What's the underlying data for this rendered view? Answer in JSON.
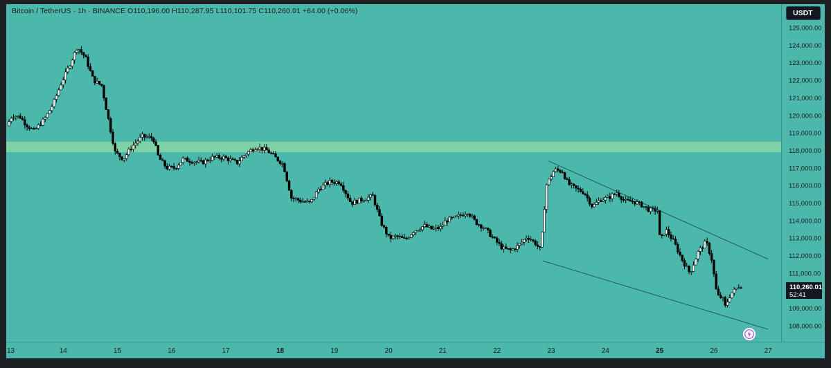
{
  "header": {
    "symbol": "Bitcoin / TetherUS",
    "interval": "1h",
    "exchange": "BINANCE",
    "ohlc_text": "O110,196.00 H110,287.95 L110,101.75 C110,260.01 +64.00 (+0.06%)"
  },
  "header_line": "Bitcoin / TetherUS · 1h · BINANCE  O110,196.00 H110,287.95 L110,101.75 C110,260.01 +64.00 (+0.06%)",
  "currency_button": "USDT",
  "price_badge": {
    "price": "110,260.01",
    "countdown": "52:41"
  },
  "alert_icon": "lightning-bolt-icon",
  "colors": {
    "background": "#4bb8ab",
    "frame": "#1e2124",
    "candle_up_body": "#ffffff",
    "candle_down_body": "#000000",
    "wick": "#000000",
    "resistance_zone": "#7fd2a6",
    "trendline": "#1f3f45",
    "badge": "#131722"
  },
  "chart_data": {
    "type": "candlestick",
    "title": "",
    "xlabel": "",
    "ylabel": "",
    "ylim": [
      107500,
      125300
    ],
    "y_ticks": [
      108000,
      109000,
      110000,
      111000,
      112000,
      113000,
      114000,
      115000,
      116000,
      117000,
      118000,
      119000,
      120000,
      121000,
      122000,
      123000,
      124000,
      125000
    ],
    "y_tick_labels": [
      "108,000.00",
      "109,000.00",
      "110,000.00",
      "111,000.00",
      "112,000.00",
      "113,000.00",
      "114,000.00",
      "115,000.00",
      "116,000.00",
      "117,000.00",
      "118,000.00",
      "119,000.00",
      "120,000.00",
      "121,000.00",
      "122,000.00",
      "123,000.00",
      "124,000.00",
      "125,000.00"
    ],
    "x_range_days": [
      13,
      27
    ],
    "x_ticks": [
      {
        "day": 13,
        "label": "13",
        "bold": false
      },
      {
        "day": 14,
        "label": "14",
        "bold": false
      },
      {
        "day": 15,
        "label": "15",
        "bold": false
      },
      {
        "day": 16,
        "label": "16",
        "bold": false
      },
      {
        "day": 17,
        "label": "17",
        "bold": false
      },
      {
        "day": 18,
        "label": "18",
        "bold": true
      },
      {
        "day": 19,
        "label": "19",
        "bold": false
      },
      {
        "day": 20,
        "label": "20",
        "bold": false
      },
      {
        "day": 21,
        "label": "21",
        "bold": false
      },
      {
        "day": 22,
        "label": "22",
        "bold": false
      },
      {
        "day": 23,
        "label": "23",
        "bold": false
      },
      {
        "day": 24,
        "label": "24",
        "bold": false
      },
      {
        "day": 25,
        "label": "25",
        "bold": true
      },
      {
        "day": 26,
        "label": "26",
        "bold": false
      },
      {
        "day": 27,
        "label": "27",
        "bold": false
      }
    ],
    "price_path": [
      [
        13.0,
        119400
      ],
      [
        13.1,
        120000
      ],
      [
        13.25,
        119900
      ],
      [
        13.35,
        119500
      ],
      [
        13.5,
        119100
      ],
      [
        13.7,
        119800
      ],
      [
        13.85,
        120600
      ],
      [
        14.0,
        121800
      ],
      [
        14.15,
        122800
      ],
      [
        14.3,
        123900
      ],
      [
        14.45,
        123300
      ],
      [
        14.6,
        122000
      ],
      [
        14.75,
        121700
      ],
      [
        14.9,
        119400
      ],
      [
        15.0,
        117900
      ],
      [
        15.15,
        117500
      ],
      [
        15.3,
        118200
      ],
      [
        15.5,
        118800
      ],
      [
        15.7,
        118700
      ],
      [
        15.8,
        117600
      ],
      [
        15.95,
        117000
      ],
      [
        16.1,
        117000
      ],
      [
        16.25,
        117500
      ],
      [
        16.4,
        117400
      ],
      [
        16.6,
        117300
      ],
      [
        16.8,
        117600
      ],
      [
        17.0,
        117600
      ],
      [
        17.25,
        117300
      ],
      [
        17.4,
        117800
      ],
      [
        17.6,
        118200
      ],
      [
        17.8,
        118000
      ],
      [
        17.95,
        117600
      ],
      [
        18.1,
        117200
      ],
      [
        18.25,
        115300
      ],
      [
        18.45,
        115100
      ],
      [
        18.6,
        115000
      ],
      [
        18.75,
        115800
      ],
      [
        18.95,
        116200
      ],
      [
        19.15,
        116200
      ],
      [
        19.35,
        115000
      ],
      [
        19.55,
        115200
      ],
      [
        19.75,
        115400
      ],
      [
        19.9,
        113900
      ],
      [
        20.05,
        113000
      ],
      [
        20.2,
        113100
      ],
      [
        20.35,
        112900
      ],
      [
        20.5,
        113400
      ],
      [
        20.7,
        113700
      ],
      [
        20.85,
        113500
      ],
      [
        21.0,
        113600
      ],
      [
        21.1,
        114000
      ],
      [
        21.3,
        114200
      ],
      [
        21.5,
        114500
      ],
      [
        21.65,
        113900
      ],
      [
        21.8,
        113600
      ],
      [
        22.0,
        112900
      ],
      [
        22.15,
        112400
      ],
      [
        22.3,
        112300
      ],
      [
        22.45,
        112600
      ],
      [
        22.6,
        113100
      ],
      [
        22.75,
        112700
      ],
      [
        22.85,
        112300
      ],
      [
        22.95,
        116000
      ],
      [
        23.1,
        116900
      ],
      [
        23.25,
        116800
      ],
      [
        23.35,
        116100
      ],
      [
        23.5,
        115800
      ],
      [
        23.65,
        115600
      ],
      [
        23.8,
        114800
      ],
      [
        23.95,
        115200
      ],
      [
        24.1,
        115300
      ],
      [
        24.25,
        115600
      ],
      [
        24.4,
        115100
      ],
      [
        24.55,
        115100
      ],
      [
        24.7,
        114900
      ],
      [
        24.85,
        114600
      ],
      [
        25.0,
        114600
      ],
      [
        25.05,
        112800
      ],
      [
        25.15,
        113500
      ],
      [
        25.3,
        112800
      ],
      [
        25.45,
        111800
      ],
      [
        25.6,
        111000
      ],
      [
        25.75,
        112200
      ],
      [
        25.9,
        112800
      ],
      [
        26.0,
        111800
      ],
      [
        26.1,
        109700
      ],
      [
        26.2,
        109600
      ],
      [
        26.25,
        109100
      ],
      [
        26.35,
        109800
      ],
      [
        26.45,
        110100
      ],
      [
        26.5,
        110260
      ]
    ],
    "resistance_zone": {
      "low": 117900,
      "high": 118500
    },
    "trendlines": [
      {
        "name": "upper",
        "from": [
          22.95,
          117400
        ],
        "to": [
          27.0,
          111800
        ]
      },
      {
        "name": "lower",
        "from": [
          22.85,
          111700
        ],
        "to": [
          27.0,
          107800
        ]
      }
    ],
    "last_price": 110260.01
  }
}
